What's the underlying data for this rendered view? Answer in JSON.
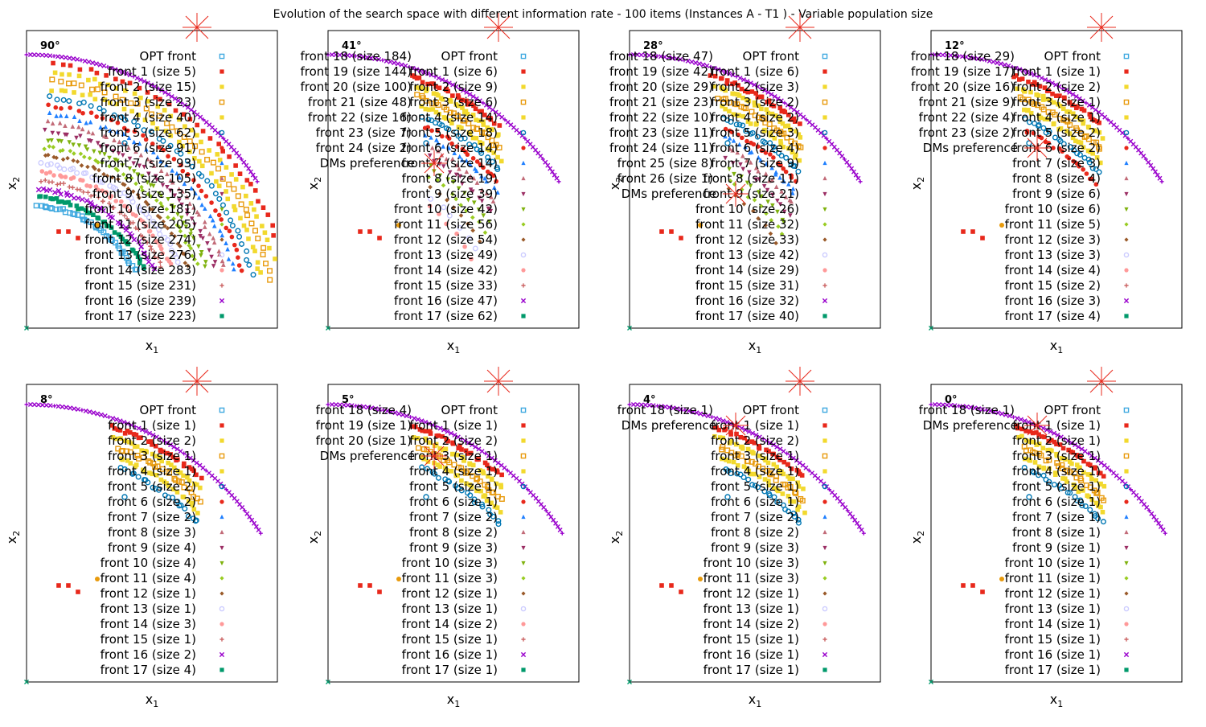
{
  "figure": {
    "title": "Evolution of the search space with different information rate - 100 items (Instances A - T1 ) - Variable population size"
  },
  "legend_style": {
    "markers": [
      "square-open",
      "square",
      "square",
      "square-open",
      "square",
      "circle-open",
      "circle",
      "triangle-up",
      "triangle-up",
      "triangle-down",
      "triangle-down",
      "diamond",
      "diamond",
      "circle-open",
      "circle",
      "plus",
      "x",
      "square"
    ],
    "colors": [
      "#3fa9e0",
      "#e8281b",
      "#f2d92e",
      "#e89a0c",
      "#f2d92e",
      "#0077b3",
      "#e8281b",
      "#1f7fff",
      "#c26b78",
      "#9b2e64",
      "#7fb20f",
      "#99cc22",
      "#9a5a2a",
      "#ccccff",
      "#ff9999",
      "#cc6666",
      "#9900cc",
      "#00996b"
    ],
    "dm_color": "#e8281b",
    "opt_color": "#9900cc"
  },
  "chart_data": [
    {
      "type": "scatter",
      "angle_label": "90°",
      "xlabel": "x",
      "xlabel_sub": "1",
      "ylabel": "x",
      "ylabel_sub": "2",
      "opt_label": "OPT front",
      "fronts": [
        {
          "label": "front 1",
          "size": "(size 5)"
        },
        {
          "label": "front 2",
          "size": "(size 15)"
        },
        {
          "label": "front 3",
          "size": "(size 23)"
        },
        {
          "label": "front 4",
          "size": "(size 40)"
        },
        {
          "label": "front 5",
          "size": "(size 62)"
        },
        {
          "label": "front 6",
          "size": "(size 91)"
        },
        {
          "label": "front 7",
          "size": "(size 93)"
        },
        {
          "label": "front 8",
          "size": "(size 105)"
        },
        {
          "label": "front 9",
          "size": "(size 135)"
        },
        {
          "label": "front 10",
          "size": "(size 181)"
        },
        {
          "label": "front 11",
          "size": "(size 205)"
        },
        {
          "label": "front 12",
          "size": "(size 274)"
        },
        {
          "label": "front 13",
          "size": "(size 276)"
        },
        {
          "label": "front 14",
          "size": "(size 283)"
        },
        {
          "label": "front 15",
          "size": "(size 231)"
        },
        {
          "label": "front 16",
          "size": "(size 239)"
        },
        {
          "label": "front 17",
          "size": "(size 223)"
        }
      ],
      "extra_fronts": [],
      "dm_label": null,
      "band_count": 18,
      "band_spread": 0.55,
      "band_inner": 0.2
    },
    {
      "type": "scatter",
      "angle_label": "41°",
      "xlabel": "x",
      "xlabel_sub": "1",
      "ylabel": "x",
      "ylabel_sub": "2",
      "opt_label": "OPT front",
      "fronts": [
        {
          "label": "front 1",
          "size": "(size 6)"
        },
        {
          "label": "front 2",
          "size": "(size 9)"
        },
        {
          "label": "front 3",
          "size": "(size 6)"
        },
        {
          "label": "front 4",
          "size": "(size 14)"
        },
        {
          "label": "front 5",
          "size": "(size 18)"
        },
        {
          "label": "front 6",
          "size": "(size 14)"
        },
        {
          "label": "front 7",
          "size": "(size 14)"
        },
        {
          "label": "front 8",
          "size": "(size 19)"
        },
        {
          "label": "front 9",
          "size": "(size 39)"
        },
        {
          "label": "front 10",
          "size": "(size 42)"
        },
        {
          "label": "front 11",
          "size": "(size 56)"
        },
        {
          "label": "front 12",
          "size": "(size 54)"
        },
        {
          "label": "front 13",
          "size": "(size 49)"
        },
        {
          "label": "front 14",
          "size": "(size 42)"
        },
        {
          "label": "front 15",
          "size": "(size 33)"
        },
        {
          "label": "front 16",
          "size": "(size 47)"
        },
        {
          "label": "front 17",
          "size": "(size 62)"
        }
      ],
      "extra_fronts": [
        {
          "label": "front 18",
          "size": "(size 184)"
        },
        {
          "label": "front 19",
          "size": "(size 144)"
        },
        {
          "label": "front 20",
          "size": "(size 100)"
        },
        {
          "label": "front 21",
          "size": "(size 48)"
        },
        {
          "label": "front 22",
          "size": "(size 16)"
        },
        {
          "label": "front 23",
          "size": "(size 7)"
        },
        {
          "label": "front 24",
          "size": "(size 2)"
        }
      ],
      "dm_label": "DMs preference",
      "band_count": 14,
      "band_spread": 0.42,
      "band_inner": 0.35
    },
    {
      "type": "scatter",
      "angle_label": "28°",
      "xlabel": "x",
      "xlabel_sub": "1",
      "ylabel": "x",
      "ylabel_sub": "2",
      "opt_label": "OPT front",
      "fronts": [
        {
          "label": "front 1",
          "size": "(size 6)"
        },
        {
          "label": "front 2",
          "size": "(size 3)"
        },
        {
          "label": "front 3",
          "size": "(size 2)"
        },
        {
          "label": "front 4",
          "size": "(size 2)"
        },
        {
          "label": "front 5",
          "size": "(size 3)"
        },
        {
          "label": "front 6",
          "size": "(size 4)"
        },
        {
          "label": "front 7",
          "size": "(size 9)"
        },
        {
          "label": "front 8",
          "size": "(size 11)"
        },
        {
          "label": "front 9",
          "size": "(size 21)"
        },
        {
          "label": "front 10",
          "size": "(size 26)"
        },
        {
          "label": "front 11",
          "size": "(size 32)"
        },
        {
          "label": "front 12",
          "size": "(size 33)"
        },
        {
          "label": "front 13",
          "size": "(size 42)"
        },
        {
          "label": "front 14",
          "size": "(size 29)"
        },
        {
          "label": "front 15",
          "size": "(size 31)"
        },
        {
          "label": "front 16",
          "size": "(size 32)"
        },
        {
          "label": "front 17",
          "size": "(size 40)"
        }
      ],
      "extra_fronts": [
        {
          "label": "front 18",
          "size": "(size 47)"
        },
        {
          "label": "front 19",
          "size": "(size 42)"
        },
        {
          "label": "front 20",
          "size": "(size 29)"
        },
        {
          "label": "front 21",
          "size": "(size 23)"
        },
        {
          "label": "front 22",
          "size": "(size 10)"
        },
        {
          "label": "front 23",
          "size": "(size 11)"
        },
        {
          "label": "front 24",
          "size": "(size 11)"
        },
        {
          "label": "front 25",
          "size": "(size 8)"
        },
        {
          "label": "front 26",
          "size": "(size 1)"
        }
      ],
      "dm_label": "DMs preference",
      "band_count": 12,
      "band_spread": 0.38,
      "band_inner": 0.4
    },
    {
      "type": "scatter",
      "angle_label": "12°",
      "xlabel": "x",
      "xlabel_sub": "1",
      "ylabel": "x",
      "ylabel_sub": "2",
      "opt_label": "OPT front",
      "fronts": [
        {
          "label": "front 1",
          "size": "(size 1)"
        },
        {
          "label": "front 2",
          "size": "(size 2)"
        },
        {
          "label": "front 3",
          "size": "(size 1)"
        },
        {
          "label": "front 4",
          "size": "(size 1)"
        },
        {
          "label": "front 5",
          "size": "(size 2)"
        },
        {
          "label": "front 6",
          "size": "(size 2)"
        },
        {
          "label": "front 7",
          "size": "(size 3)"
        },
        {
          "label": "front 8",
          "size": "(size 4)"
        },
        {
          "label": "front 9",
          "size": "(size 6)"
        },
        {
          "label": "front 10",
          "size": "(size 6)"
        },
        {
          "label": "front 11",
          "size": "(size 5)"
        },
        {
          "label": "front 12",
          "size": "(size 3)"
        },
        {
          "label": "front 13",
          "size": "(size 3)"
        },
        {
          "label": "front 14",
          "size": "(size 4)"
        },
        {
          "label": "front 15",
          "size": "(size 2)"
        },
        {
          "label": "front 16",
          "size": "(size 3)"
        },
        {
          "label": "front 17",
          "size": "(size 4)"
        }
      ],
      "extra_fronts": [
        {
          "label": "front 18",
          "size": "(size 29)"
        },
        {
          "label": "front 19",
          "size": "(size 17)"
        },
        {
          "label": "front 20",
          "size": "(size 16)"
        },
        {
          "label": "front 21",
          "size": "(size 9)"
        },
        {
          "label": "front 22",
          "size": "(size 4)"
        },
        {
          "label": "front 23",
          "size": "(size 2)"
        }
      ],
      "dm_label": "DMs preference",
      "band_count": 6,
      "band_spread": 0.2,
      "band_inner": 0.6
    },
    {
      "type": "scatter",
      "angle_label": "8°",
      "xlabel": "x",
      "xlabel_sub": "1",
      "ylabel": "x",
      "ylabel_sub": "2",
      "opt_label": "OPT front",
      "fronts": [
        {
          "label": "front 1",
          "size": "(size 1)"
        },
        {
          "label": "front 2",
          "size": "(size 2)"
        },
        {
          "label": "front 3",
          "size": "(size 1)"
        },
        {
          "label": "front 4",
          "size": "(size 1)"
        },
        {
          "label": "front 5",
          "size": "(size 2)"
        },
        {
          "label": "front 6",
          "size": "(size 2)"
        },
        {
          "label": "front 7",
          "size": "(size 2)"
        },
        {
          "label": "front 8",
          "size": "(size 3)"
        },
        {
          "label": "front 9",
          "size": "(size 4)"
        },
        {
          "label": "front 10",
          "size": "(size 4)"
        },
        {
          "label": "front 11",
          "size": "(size 4)"
        },
        {
          "label": "front 12",
          "size": "(size 1)"
        },
        {
          "label": "front 13",
          "size": "(size 1)"
        },
        {
          "label": "front 14",
          "size": "(size 3)"
        },
        {
          "label": "front 15",
          "size": "(size 1)"
        },
        {
          "label": "front 16",
          "size": "(size 2)"
        },
        {
          "label": "front 17",
          "size": "(size 4)"
        }
      ],
      "extra_fronts": [],
      "dm_label": null,
      "band_count": 5,
      "band_spread": 0.16,
      "band_inner": 0.65
    },
    {
      "type": "scatter",
      "angle_label": "5°",
      "xlabel": "x",
      "xlabel_sub": "1",
      "ylabel": "x",
      "ylabel_sub": "2",
      "opt_label": "OPT front",
      "fronts": [
        {
          "label": "front 1",
          "size": "(size 1)"
        },
        {
          "label": "front 2",
          "size": "(size 2)"
        },
        {
          "label": "front 3",
          "size": "(size 1)"
        },
        {
          "label": "front 4",
          "size": "(size 1)"
        },
        {
          "label": "front 5",
          "size": "(size 1)"
        },
        {
          "label": "front 6",
          "size": "(size 1)"
        },
        {
          "label": "front 7",
          "size": "(size 2)"
        },
        {
          "label": "front 8",
          "size": "(size 2)"
        },
        {
          "label": "front 9",
          "size": "(size 3)"
        },
        {
          "label": "front 10",
          "size": "(size 3)"
        },
        {
          "label": "front 11",
          "size": "(size 3)"
        },
        {
          "label": "front 12",
          "size": "(size 1)"
        },
        {
          "label": "front 13",
          "size": "(size 1)"
        },
        {
          "label": "front 14",
          "size": "(size 2)"
        },
        {
          "label": "front 15",
          "size": "(size 1)"
        },
        {
          "label": "front 16",
          "size": "(size 1)"
        },
        {
          "label": "front 17",
          "size": "(size 1)"
        }
      ],
      "extra_fronts": [
        {
          "label": "front 18",
          "size": "(size 4)"
        },
        {
          "label": "front 19",
          "size": "(size 1)"
        },
        {
          "label": "front 20",
          "size": "(size 1)"
        }
      ],
      "dm_label": "DMs preference",
      "band_count": 5,
      "band_spread": 0.16,
      "band_inner": 0.65
    },
    {
      "type": "scatter",
      "angle_label": "4°",
      "xlabel": "x",
      "xlabel_sub": "1",
      "ylabel": "x",
      "ylabel_sub": "2",
      "opt_label": "OPT front",
      "fronts": [
        {
          "label": "front 1",
          "size": "(size 1)"
        },
        {
          "label": "front 2",
          "size": "(size 2)"
        },
        {
          "label": "front 3",
          "size": "(size 1)"
        },
        {
          "label": "front 4",
          "size": "(size 1)"
        },
        {
          "label": "front 5",
          "size": "(size 1)"
        },
        {
          "label": "front 6",
          "size": "(size 1)"
        },
        {
          "label": "front 7",
          "size": "(size 2)"
        },
        {
          "label": "front 8",
          "size": "(size 2)"
        },
        {
          "label": "front 9",
          "size": "(size 3)"
        },
        {
          "label": "front 10",
          "size": "(size 3)"
        },
        {
          "label": "front 11",
          "size": "(size 3)"
        },
        {
          "label": "front 12",
          "size": "(size 1)"
        },
        {
          "label": "front 13",
          "size": "(size 1)"
        },
        {
          "label": "front 14",
          "size": "(size 2)"
        },
        {
          "label": "front 15",
          "size": "(size 1)"
        },
        {
          "label": "front 16",
          "size": "(size 1)"
        },
        {
          "label": "front 17",
          "size": "(size 1)"
        }
      ],
      "extra_fronts": [
        {
          "label": "front 18",
          "size": "(size 1)"
        }
      ],
      "dm_label": "DMs preference",
      "band_count": 5,
      "band_spread": 0.16,
      "band_inner": 0.65
    },
    {
      "type": "scatter",
      "angle_label": "0°",
      "xlabel": "x",
      "xlabel_sub": "1",
      "ylabel": "x",
      "ylabel_sub": "2",
      "opt_label": "OPT front",
      "fronts": [
        {
          "label": "front 1",
          "size": "(size 1)"
        },
        {
          "label": "front 2",
          "size": "(size 1)"
        },
        {
          "label": "front 3",
          "size": "(size 1)"
        },
        {
          "label": "front 4",
          "size": "(size 1)"
        },
        {
          "label": "front 5",
          "size": "(size 1)"
        },
        {
          "label": "front 6",
          "size": "(size 1)"
        },
        {
          "label": "front 7",
          "size": "(size 1)"
        },
        {
          "label": "front 8",
          "size": "(size 1)"
        },
        {
          "label": "front 9",
          "size": "(size 1)"
        },
        {
          "label": "front 10",
          "size": "(size 1)"
        },
        {
          "label": "front 11",
          "size": "(size 1)"
        },
        {
          "label": "front 12",
          "size": "(size 1)"
        },
        {
          "label": "front 13",
          "size": "(size 1)"
        },
        {
          "label": "front 14",
          "size": "(size 1)"
        },
        {
          "label": "front 15",
          "size": "(size 1)"
        },
        {
          "label": "front 16",
          "size": "(size 1)"
        },
        {
          "label": "front 17",
          "size": "(size 1)"
        }
      ],
      "extra_fronts": [
        {
          "label": "front 18",
          "size": "(size 1)"
        }
      ],
      "dm_label": "DMs preference",
      "band_count": 5,
      "band_spread": 0.16,
      "band_inner": 0.65
    }
  ]
}
